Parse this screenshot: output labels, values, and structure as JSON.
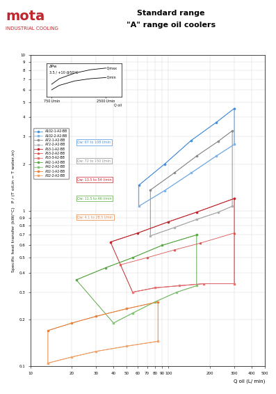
{
  "chart_data": [
    {
      "type": "line",
      "title": "Standard range",
      "subtitle": "\"A\" range oil coolers",
      "annotations": [
        "mota",
        "INDUSTRIAL COOLING"
      ],
      "xlabel": "Q oil (L/ min)",
      "ylabel": "Specific heat transfer (kW/°C)   P / (T oil,in − T water,in)",
      "log": true,
      "grid": true,
      "legend": "upper left",
      "xlim": [
        10,
        500
      ],
      "xticks": [
        10,
        20,
        30,
        40,
        50,
        60,
        70,
        80,
        90,
        100,
        200,
        300,
        400,
        500
      ],
      "ylim": [
        0.1,
        10
      ],
      "yticks": [
        0.1,
        0.2,
        0.3,
        0.4,
        0.5,
        0.6,
        0.7,
        0.8,
        0.9,
        1,
        2,
        3,
        4,
        5,
        6,
        7,
        8,
        9,
        10
      ],
      "groups": [
        {
          "name": "Qw: 67 to 108 l/min",
          "color": "#4a90d9",
          "series": [
            {
              "name": "A102-1-A2-BB",
              "color": "#4a90d9",
              "marker": "o",
              "x": [
                61,
                94,
                146,
                222,
                300
              ],
              "values": [
                1.46,
                2.0,
                2.83,
                3.7,
                4.55
              ]
            },
            {
              "name": "A102-2-A2-BB",
              "color": "#7fb2e5",
              "marker": "s",
              "x": [
                61,
                94,
                146,
                222,
                300
              ],
              "values": [
                1.07,
                1.35,
                1.75,
                2.25,
                2.67
              ]
            }
          ]
        },
        {
          "name": "Qw: 72 to 150 l/min",
          "color": "#8c8c8c",
          "series": [
            {
              "name": "A72-1-A2-BB",
              "color": "#8c8c8c",
              "marker": "o",
              "x": [
                74,
                110,
                160,
                230,
                290
              ],
              "values": [
                1.36,
                1.75,
                2.25,
                2.8,
                3.27
              ]
            },
            {
              "name": "A72-2-A2-BB",
              "color": "#b0b0b0",
              "marker": "s",
              "x": [
                74,
                110,
                160,
                230,
                290
              ],
              "values": [
                0.69,
                0.78,
                0.88,
                0.98,
                1.07
              ]
            }
          ]
        },
        {
          "name": "Qw: 13.5 to 54 l/min",
          "color": "#c0262d",
          "series": [
            {
              "name": "A53-1-A2-BB",
              "color": "#c0262d",
              "marker": "o",
              "x": [
                38,
                60,
                100,
                160,
                300
              ],
              "values": [
                0.63,
                0.72,
                0.85,
                0.98,
                1.2
              ]
            },
            {
              "name": "A53-2-A2-BB",
              "color": "#d9534f",
              "marker": "^",
              "x": [
                45,
                70,
                110,
                170,
                300
              ],
              "values": [
                0.45,
                0.5,
                0.56,
                0.62,
                0.72
              ]
            },
            {
              "name": "A53-3-A2-BB",
              "color": "#e57373",
              "marker": "s",
              "x": [
                55,
                80,
                120,
                180,
                300
              ],
              "values": [
                0.3,
                0.32,
                0.33,
                0.34,
                0.34
              ]
            }
          ]
        },
        {
          "name": "Qw: 11.5 to 46 l/min",
          "color": "#5aa846",
          "series": [
            {
              "name": "A42-1-A2-BB",
              "color": "#5aa846",
              "marker": "o",
              "x": [
                21.5,
                35,
                55,
                90,
                160
              ],
              "values": [
                0.36,
                0.43,
                0.5,
                0.6,
                0.7
              ]
            },
            {
              "name": "A42-2-A2-BB",
              "color": "#86c277",
              "marker": "s",
              "x": [
                40,
                55,
                80,
                115,
                160
              ],
              "values": [
                0.19,
                0.22,
                0.26,
                0.3,
                0.33
              ]
            }
          ]
        },
        {
          "name": "Qw: 4.1 to 28.5 l/min",
          "color": "#e8803a",
          "series": [
            {
              "name": "A32-1-A2-BB",
              "color": "#e8803a",
              "marker": "o",
              "x": [
                13.4,
                20,
                30,
                50,
                84
              ],
              "values": [
                0.17,
                0.19,
                0.21,
                0.235,
                0.26
              ]
            },
            {
              "name": "A32-2-A2-BB",
              "color": "#f0a56e",
              "marker": "s",
              "x": [
                13.4,
                20,
                30,
                50,
                84
              ],
              "values": [
                0.105,
                0.115,
                0.125,
                0.135,
                0.145
              ]
            }
          ]
        }
      ]
    },
    {
      "type": "line",
      "title": "ΔPw",
      "subtitle": "3.5 / +10 @50°C",
      "xlabel": "Q oil",
      "tick_labels": "x",
      "xlim": [
        600,
        3000
      ],
      "xticks": [
        {
          "value": 750,
          "label": "750 l/min"
        },
        {
          "value": 2500,
          "label": "2500 l/min"
        }
      ],
      "ylim": [
        0,
        6
      ],
      "yticks": [],
      "series": [
        {
          "name": "Qmax",
          "color": "#000000",
          "x": [
            750,
            1000,
            1500,
            2000,
            2500
          ],
          "values": [
            2.2,
            3.2,
            4.2,
            4.8,
            5.1
          ]
        },
        {
          "name": "Qmin",
          "color": "#000000",
          "x": [
            750,
            1000,
            1500,
            2000,
            2500
          ],
          "values": [
            1.2,
            2.0,
            2.8,
            3.2,
            3.4
          ]
        }
      ]
    }
  ]
}
